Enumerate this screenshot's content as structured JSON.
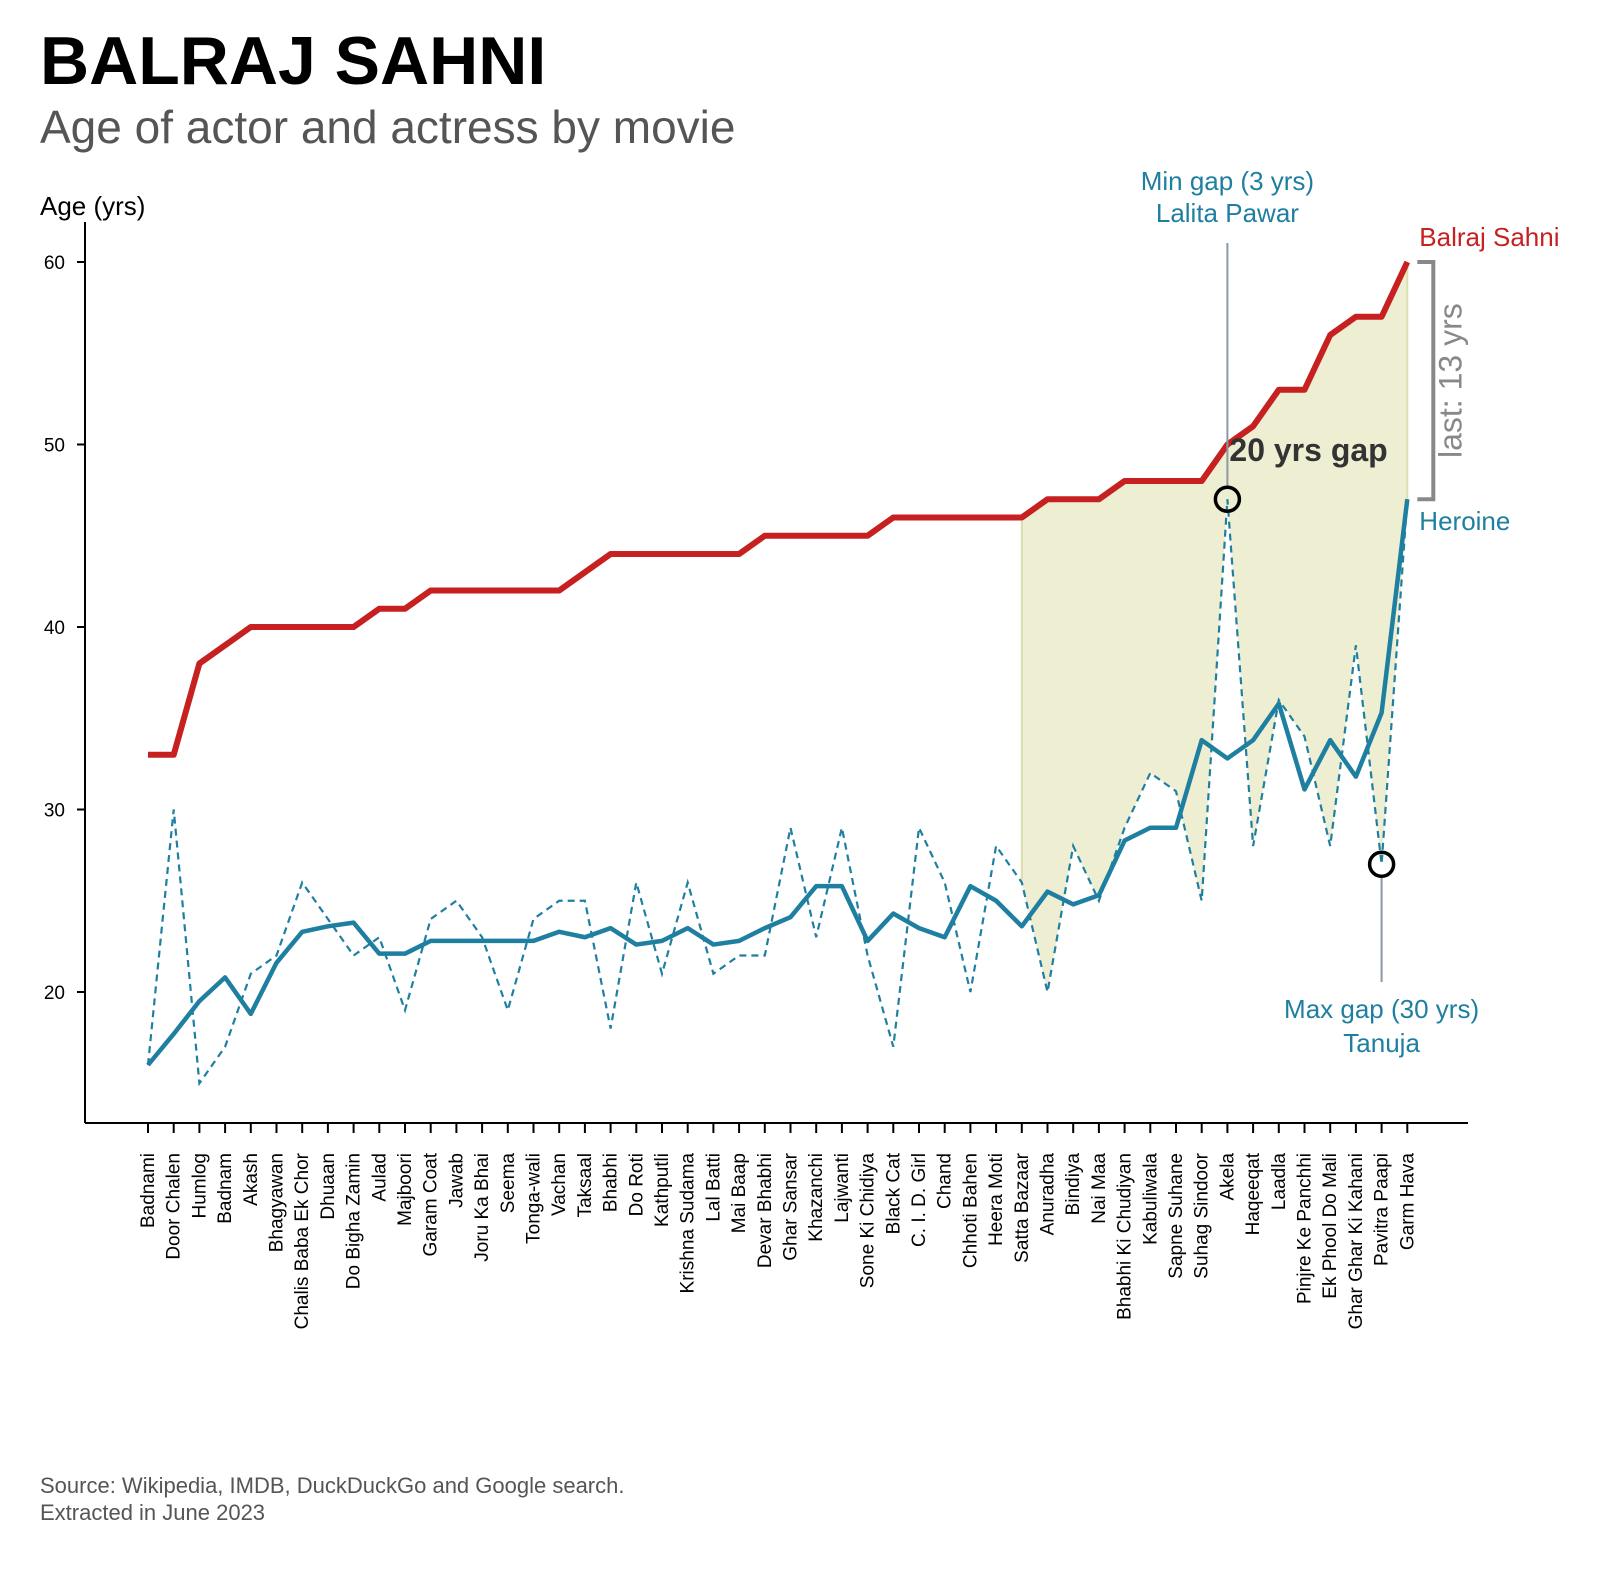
{
  "title": "BALRAJ SAHNI",
  "subtitle": "Age of actor and actress by movie",
  "source_line1": "Source: Wikipedia, IMDB, DuckDuckGo and Google search.",
  "source_line2": "Extracted in June 2023",
  "colors": {
    "actor": "#c62020",
    "heroine": "#1f7fa0",
    "shade": "#eeeed3",
    "gap_bracket": "#888888",
    "min_max_line": "#8a9aa5"
  },
  "annotations": {
    "min_gap_line1": "Min gap (3 yrs)",
    "min_gap_line2": "Lalita Pawar",
    "max_gap_line1": "Max gap (30 yrs)",
    "max_gap_line2": "Tanuja",
    "gap_label": "20 yrs gap",
    "last_label": "last: 13 yrs",
    "actor_label": "Balraj Sahni",
    "heroine_label": "Heroine"
  },
  "chart_data": {
    "type": "line",
    "title": "BALRAJ SAHNI",
    "subtitle": "Age of actor and actress by movie",
    "ylabel": "Age (yrs)",
    "xlabel": "",
    "ylim": [
      14,
      62
    ],
    "yticks": [
      20,
      30,
      40,
      50,
      60
    ],
    "grid": false,
    "categories": [
      "Badnami",
      "Door Chalen",
      "Humlog",
      "Badnam",
      "Akash",
      "Bhagyawan",
      "Chalis Baba Ek Chor",
      "Dhuaan",
      "Do Bigha Zamin",
      "Aulad",
      "Majboori",
      "Garam Coat",
      "Jawab",
      "Joru Ka Bhai",
      "Seema",
      "Tonga-wali",
      "Vachan",
      "Taksaal",
      "Bhabhi",
      "Do Roti",
      "Kathputli",
      "Krishna Sudama",
      "Lal Batti",
      "Mai Baap",
      "Devar Bhabhi",
      "Ghar Sansar",
      "Khazanchi",
      "Lajwanti",
      "Sone Ki Chidiya",
      "Black Cat",
      "C. I. D. Girl",
      "Chand",
      "Chhoti Bahen",
      "Heera Moti",
      "Satta Bazaar",
      "Anuradha",
      "Bindiya",
      "Nai Maa",
      "Bhabhi Ki Chudiyan",
      "Kabuliwala",
      "Sapne Suhane",
      "Suhag Sindoor",
      "Akela",
      "Haqeeqat",
      "Laadla",
      "Pinjre Ke Panchhi",
      "Ek Phool Do Mali",
      "Ghar Ghar Ki Kahani",
      "Pavitra Paapi",
      "Garm Hava"
    ],
    "series": [
      {
        "name": "Balraj Sahni",
        "style": "solid",
        "values": [
          33,
          33,
          38,
          39,
          40,
          40,
          40,
          40,
          40,
          41,
          41,
          42,
          42,
          42,
          42,
          42,
          42,
          43,
          44,
          44,
          44,
          44,
          44,
          44,
          45,
          45,
          45,
          45,
          45,
          46,
          46,
          46,
          46,
          46,
          46,
          47,
          47,
          47,
          48,
          48,
          48,
          48,
          50,
          51,
          53,
          53,
          56,
          57,
          57,
          60
        ]
      },
      {
        "name": "Heroine",
        "style": "dashed",
        "values": [
          16,
          30,
          15,
          17,
          21,
          22,
          26,
          24,
          22,
          23,
          19,
          24,
          25,
          23,
          19,
          24,
          25,
          25,
          18,
          26,
          21,
          26,
          21,
          22,
          22,
          29,
          23,
          29,
          22,
          17,
          29,
          26,
          20,
          28,
          26,
          20,
          28,
          25,
          29,
          32,
          31,
          25,
          47,
          28,
          36,
          34,
          28,
          39,
          27,
          47
        ]
      },
      {
        "name": "Heroine",
        "style": "solid-smoothed",
        "values": [
          16,
          17.7,
          19.5,
          20.8,
          18.8,
          21.6,
          23.3,
          23.6,
          23.8,
          22.1,
          22.1,
          22.8,
          22.8,
          22.8,
          22.8,
          22.8,
          23.3,
          23.0,
          23.5,
          22.6,
          22.8,
          23.5,
          22.6,
          22.8,
          23.5,
          24.1,
          25.8,
          25.8,
          22.8,
          24.3,
          23.5,
          23.0,
          25.8,
          25.0,
          23.6,
          25.5,
          24.8,
          25.3,
          28.3,
          29.0,
          29.0,
          33.8,
          32.8,
          33.8,
          35.8,
          31.1,
          33.8,
          31.8,
          35.3,
          47
        ]
      }
    ],
    "shaded_region": {
      "from": "Satta Bazaar",
      "to": "Garm Hava",
      "between": "Balraj Sahni and Heroine (dashed)"
    },
    "highlights": [
      {
        "label": "Min gap (3 yrs)",
        "movie": "Akela",
        "value": 47
      },
      {
        "label": "Max gap (30 yrs)",
        "movie": "Pavitra Paapi",
        "value": 27
      }
    ],
    "gap_bracket": {
      "from": 47,
      "to": 60,
      "label": "last: 13 yrs"
    }
  }
}
